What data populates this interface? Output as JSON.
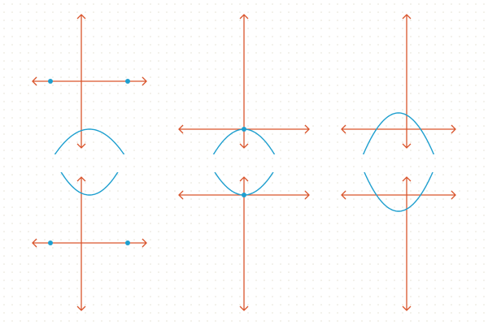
{
  "colors": {
    "background": "#ffffff",
    "grid": "#e4e1d4",
    "axis": "#d9542b",
    "curve": "#1e9fcf",
    "point": "#1e9fcf"
  },
  "diagrams": [
    {
      "id": "up-two-roots",
      "opens": "up",
      "vertex_relative_to_x_axis": "below",
      "root_points": 2
    },
    {
      "id": "up-one-root",
      "opens": "up",
      "vertex_relative_to_x_axis": "on",
      "root_points": 1
    },
    {
      "id": "up-no-roots",
      "opens": "up",
      "vertex_relative_to_x_axis": "above",
      "root_points": 0
    },
    {
      "id": "down-two-roots",
      "opens": "down",
      "vertex_relative_to_x_axis": "above",
      "root_points": 2
    },
    {
      "id": "down-one-root",
      "opens": "down",
      "vertex_relative_to_x_axis": "on",
      "root_points": 1
    },
    {
      "id": "down-no-roots",
      "opens": "down",
      "vertex_relative_to_x_axis": "below",
      "root_points": 0
    }
  ]
}
